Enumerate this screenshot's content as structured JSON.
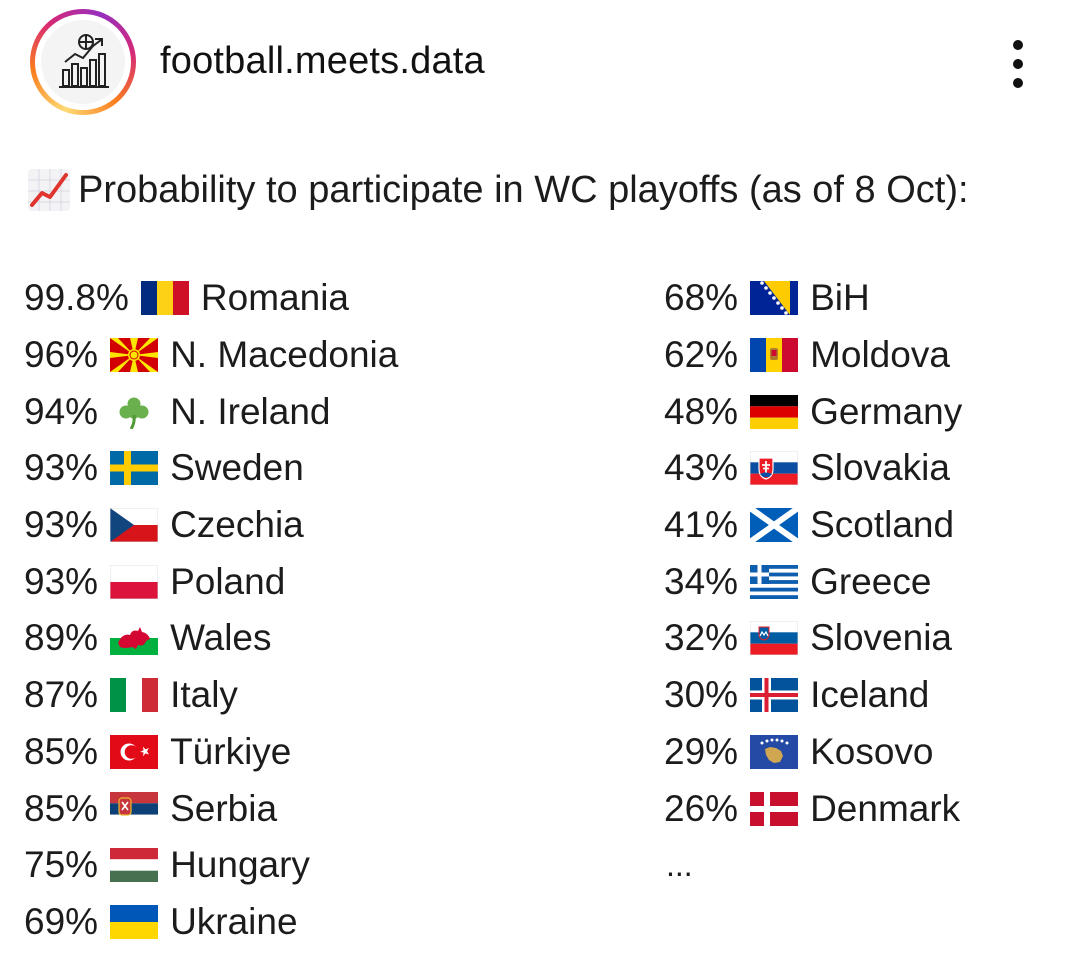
{
  "header": {
    "account_name": "football.meets.data",
    "avatar_icon": "bar-chart-football-logo-icon",
    "more_icon": "more-vertical-icon"
  },
  "post": {
    "title_icon": "chart-increasing-icon",
    "title": "Probability to participate in WC playoffs (as of 8 Oct):",
    "left_column": [
      {
        "percent": "99.8%",
        "flag": "romania-flag-icon",
        "country": "Romania"
      },
      {
        "percent": "96%",
        "flag": "north-macedonia-flag-icon",
        "country": "N. Macedonia"
      },
      {
        "percent": "94%",
        "flag": "shamrock-icon",
        "country": "N. Ireland"
      },
      {
        "percent": "93%",
        "flag": "sweden-flag-icon",
        "country": "Sweden"
      },
      {
        "percent": "93%",
        "flag": "czechia-flag-icon",
        "country": "Czechia"
      },
      {
        "percent": "93%",
        "flag": "poland-flag-icon",
        "country": "Poland"
      },
      {
        "percent": "89%",
        "flag": "wales-flag-icon",
        "country": "Wales"
      },
      {
        "percent": "87%",
        "flag": "italy-flag-icon",
        "country": "Italy"
      },
      {
        "percent": "85%",
        "flag": "turkiye-flag-icon",
        "country": "Türkiye"
      },
      {
        "percent": "85%",
        "flag": "serbia-flag-icon",
        "country": "Serbia"
      },
      {
        "percent": "75%",
        "flag": "hungary-flag-icon",
        "country": "Hungary"
      },
      {
        "percent": "69%",
        "flag": "ukraine-flag-icon",
        "country": "Ukraine"
      }
    ],
    "right_column": [
      {
        "percent": "68%",
        "flag": "bosnia-flag-icon",
        "country": "BiH"
      },
      {
        "percent": "62%",
        "flag": "moldova-flag-icon",
        "country": "Moldova"
      },
      {
        "percent": "48%",
        "flag": "germany-flag-icon",
        "country": "Germany"
      },
      {
        "percent": "43%",
        "flag": "slovakia-flag-icon",
        "country": "Slovakia"
      },
      {
        "percent": "41%",
        "flag": "scotland-flag-icon",
        "country": "Scotland"
      },
      {
        "percent": "34%",
        "flag": "greece-flag-icon",
        "country": "Greece"
      },
      {
        "percent": "32%",
        "flag": "slovenia-flag-icon",
        "country": "Slovenia"
      },
      {
        "percent": "30%",
        "flag": "iceland-flag-icon",
        "country": "Iceland"
      },
      {
        "percent": "29%",
        "flag": "kosovo-flag-icon",
        "country": "Kosovo"
      },
      {
        "percent": "26%",
        "flag": "denmark-flag-icon",
        "country": "Denmark"
      }
    ],
    "continuation": "..."
  }
}
